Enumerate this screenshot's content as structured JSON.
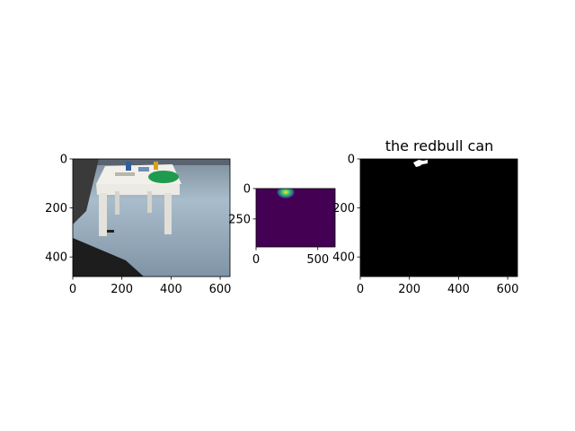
{
  "chart_data": [
    {
      "type": "image",
      "image_content": "photo of a white table with objects and a green plate",
      "x_ticks": [
        "0",
        "200",
        "400",
        "600"
      ],
      "x_tick_values": [
        0,
        200,
        400,
        600
      ],
      "y_ticks": [
        "0",
        "200",
        "400"
      ],
      "y_tick_values": [
        0,
        200,
        400
      ],
      "xlim": [
        0,
        640
      ],
      "ylim": [
        480,
        0
      ]
    },
    {
      "type": "heatmap",
      "colormap": "viridis",
      "x_ticks": [
        "0",
        "500"
      ],
      "x_tick_values": [
        0,
        500
      ],
      "y_ticks": [
        "0",
        "250"
      ],
      "y_tick_values": [
        0,
        250
      ],
      "xlim": [
        0,
        640
      ],
      "ylim": [
        480,
        0
      ],
      "hotspot": {
        "x": 240,
        "y": 30,
        "value": 1.0
      }
    },
    {
      "type": "image",
      "title": "the redbull can",
      "image_content": "binary mask",
      "x_ticks": [
        "0",
        "200",
        "400",
        "600"
      ],
      "x_tick_values": [
        0,
        200,
        400,
        600
      ],
      "y_ticks": [
        "0",
        "200",
        "400"
      ],
      "y_tick_values": [
        0,
        200,
        400
      ],
      "xlim": [
        0,
        640
      ],
      "ylim": [
        480,
        0
      ]
    }
  ],
  "colors": {
    "viridis_low": "#440154",
    "viridis_high": "#fde725",
    "mask_background": "#000000",
    "mask_foreground": "#ffffff",
    "plate": "#1f9b4f"
  }
}
